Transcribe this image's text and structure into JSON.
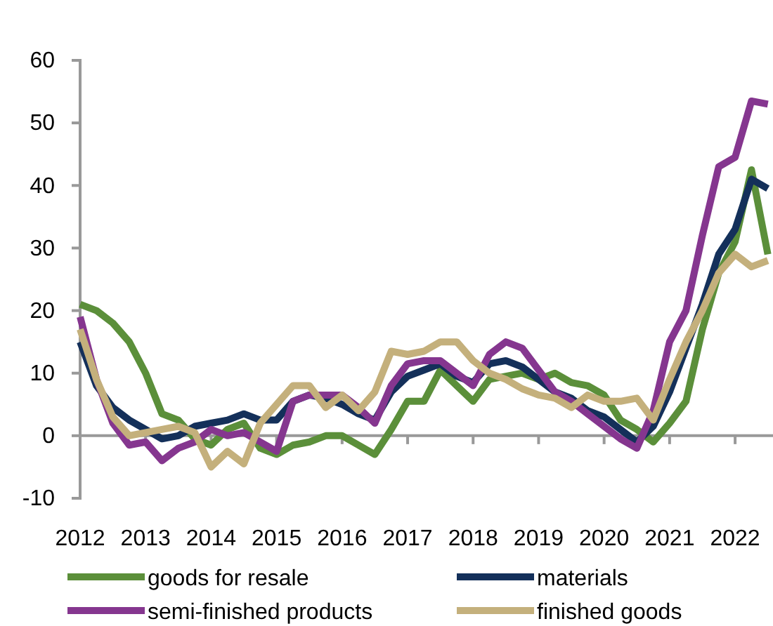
{
  "chart_data": {
    "type": "line",
    "x": [
      2012,
      2012.25,
      2012.5,
      2012.75,
      2013,
      2013.25,
      2013.5,
      2013.75,
      2014,
      2014.25,
      2014.5,
      2014.75,
      2015,
      2015.25,
      2015.5,
      2015.75,
      2016,
      2016.25,
      2016.5,
      2016.75,
      2017,
      2017.25,
      2017.5,
      2017.75,
      2018,
      2018.25,
      2018.5,
      2018.75,
      2019,
      2019.25,
      2019.5,
      2019.75,
      2020,
      2020.25,
      2020.5,
      2020.75,
      2021,
      2021.25,
      2021.5,
      2021.75,
      2022,
      2022.25,
      2022.5
    ],
    "series": [
      {
        "name": "goods for resale",
        "color": "#5b8f3a",
        "values": [
          21,
          20,
          18,
          15,
          10,
          3.5,
          2.5,
          -0.5,
          -1.5,
          1,
          2,
          -2,
          -3,
          -1.5,
          -1,
          0,
          0,
          -1.5,
          -3,
          1,
          5.5,
          5.5,
          10.5,
          8,
          5.5,
          9,
          9.5,
          10,
          9,
          10,
          8.5,
          8,
          6.5,
          2.5,
          1,
          -1,
          2,
          5.5,
          17,
          26,
          31,
          42.5,
          29
        ]
      },
      {
        "name": "materials",
        "color": "#14305a",
        "values": [
          15,
          8,
          4.5,
          2.5,
          1,
          -0.5,
          0,
          1.5,
          2,
          2.5,
          3.5,
          2.5,
          2.5,
          5.5,
          6.5,
          6,
          5,
          3.5,
          2.5,
          7,
          9.5,
          10.5,
          11.5,
          9.5,
          8.5,
          11.5,
          12,
          11,
          9,
          7,
          6,
          4,
          3,
          1,
          -1,
          1.5,
          7,
          14,
          21,
          29,
          33,
          41,
          39.5
        ]
      },
      {
        "name": "semi-finished products",
        "color": "#85368f",
        "values": [
          19,
          9,
          2,
          -1.5,
          -1,
          -4,
          -2,
          -1,
          1,
          0,
          0.5,
          -1,
          -2.5,
          5.5,
          6.5,
          6.5,
          6.5,
          4.5,
          2,
          8,
          11.5,
          12,
          12,
          10,
          8,
          13,
          15,
          14,
          10.5,
          7,
          5.5,
          3.5,
          1.5,
          -0.5,
          -2,
          4,
          15,
          20,
          32,
          43,
          44.5,
          53.5,
          53
        ]
      },
      {
        "name": "finished goods",
        "color": "#c4b07c",
        "values": [
          17,
          9,
          3,
          0,
          0.5,
          1,
          1.5,
          0.5,
          -5,
          -2.5,
          -4.5,
          2,
          5,
          8,
          8,
          4.5,
          6.5,
          4,
          7,
          13.5,
          13,
          13.5,
          15,
          15,
          12,
          10,
          9,
          7.5,
          6.5,
          6,
          4.5,
          6.5,
          5.5,
          5.5,
          6,
          2.5,
          9,
          15,
          20,
          26,
          29,
          27,
          28
        ]
      }
    ],
    "xlim": [
      2012,
      2022.6
    ],
    "xticks": [
      2012,
      2013,
      2014,
      2015,
      2016,
      2017,
      2018,
      2019,
      2020,
      2021,
      2022
    ],
    "ylim": [
      -10,
      60
    ],
    "yticks": [
      -10,
      0,
      10,
      20,
      30,
      40,
      50,
      60
    ],
    "grid": false,
    "legend": "bottom",
    "marker": "none",
    "line_style": "solid"
  }
}
